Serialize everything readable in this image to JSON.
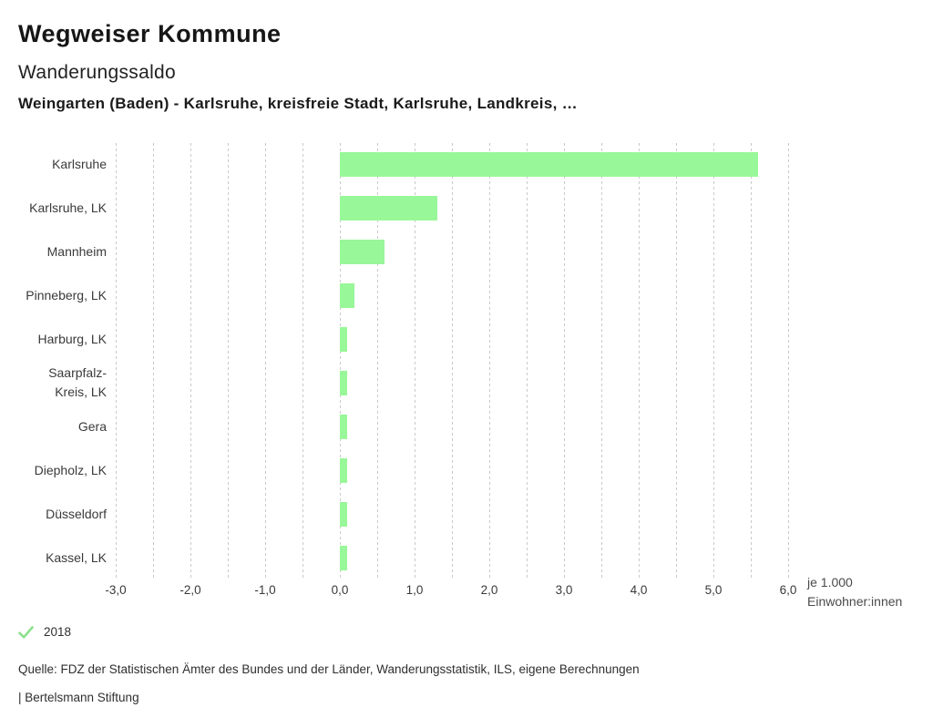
{
  "header": {
    "app_title": "Wegweiser Kommune",
    "chart_title": "Wanderungssaldo",
    "comparison_line": "Weingarten (Baden) - Karlsruhe, kreisfreie Stadt, Karlsruhe, Landkreis, …"
  },
  "chart_data": {
    "type": "bar",
    "orientation": "horizontal",
    "title": "Wanderungssaldo",
    "xlabel": "je 1.000 Einwohner:innen",
    "categories": [
      "Karlsruhe",
      "Karlsruhe, LK",
      "Mannheim",
      "Pinneberg, LK",
      "Harburg, LK",
      "Saarpfalz-Kreis, LK",
      "Gera",
      "Diepholz, LK",
      "Düsseldorf",
      "Kassel, LK"
    ],
    "values": [
      5.6,
      1.3,
      0.6,
      0.2,
      0.1,
      0.1,
      0.1,
      0.1,
      0.1,
      0.1
    ],
    "series_year": "2018",
    "xlim": [
      -3.0,
      6.0
    ],
    "grid_step": 0.5,
    "tick_step": 1.0,
    "tick_labels": [
      "-3,0",
      "-2,0",
      "-1,0",
      "0,0",
      "1,0",
      "2,0",
      "3,0",
      "4,0",
      "5,0",
      "6,0"
    ],
    "grid": true,
    "legend_position": "bottom-left"
  },
  "axis_note": {
    "line1": "je 1.000",
    "line2": "Einwohner:innen"
  },
  "legend": {
    "year_label": "2018",
    "check_icon": "checkmark"
  },
  "footer": {
    "source": "Quelle: FDZ der Statistischen Ämter des Bundes und der Länder, Wanderungsstatistik, ILS, eigene Berechnungen",
    "branding": "| Bertelsmann Stiftung"
  },
  "colors": {
    "bar": "#98f798",
    "grid": "#c9c9c9",
    "check": "#8ce08c"
  }
}
